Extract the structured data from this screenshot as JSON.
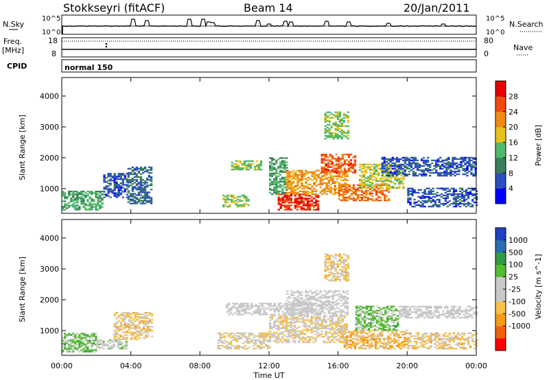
{
  "header": {
    "station": "Stokkseyri (fitACF)",
    "beam": "Beam 14",
    "date": "20/Jan/2011"
  },
  "top_strips": {
    "nsky": {
      "left_label": "N.Sky",
      "tick_top": "10^5",
      "tick_bottom": "10^0"
    },
    "nsearch": {
      "right_label": "N.Search",
      "tick_top": "10^5",
      "tick_bottom": "10^0"
    },
    "freq": {
      "left_label_1": "Freq.",
      "left_label_2": "[MHz]",
      "tick_top": "18",
      "tick_bottom": "8"
    },
    "nave": {
      "right_label": "Nave",
      "tick_top": "80",
      "tick_bottom": "0"
    },
    "cpid": {
      "left_label": "CPID",
      "program": "normal 150"
    }
  },
  "colors": {
    "power_scale": [
      "#0000ff",
      "#2c4fc0",
      "#3a7d5a",
      "#52b86a",
      "#e6c21c",
      "#f08a14",
      "#f04a10",
      "#e60000"
    ],
    "velocity_scale": [
      "#ff0000",
      "#f06010",
      "#f59a1a",
      "#f7c04a",
      "#c9c9c9",
      "#c9c9c9",
      "#55bb33",
      "#339944",
      "#2a6db0",
      "#2040c0"
    ]
  },
  "chart_data": [
    {
      "type": "heatmap",
      "title": "",
      "xlabel": "Time UT",
      "ylabel": "Slant Range [km]",
      "x_ticks": [
        "00:00",
        "04:00",
        "08:00",
        "12:00",
        "16:00",
        "20:00",
        "00:00"
      ],
      "y_ticks": [
        "1000",
        "2000",
        "3000",
        "4000"
      ],
      "ylim": [
        200,
        4600
      ],
      "colorbar": {
        "label": "Power [dB]",
        "ticks": [
          "4",
          "8",
          "12",
          "16",
          "20",
          "24",
          "28"
        ],
        "range": [
          0,
          30
        ]
      },
      "regions": [
        {
          "t0": 0.0,
          "t1": 2.3,
          "r0": 300,
          "r1": 900,
          "value": 12
        },
        {
          "t0": 2.4,
          "t1": 3.8,
          "r0": 700,
          "r1": 1500,
          "value": 6
        },
        {
          "t0": 3.8,
          "t1": 5.2,
          "r0": 500,
          "r1": 1700,
          "value": 8
        },
        {
          "t0": 9.3,
          "t1": 10.8,
          "r0": 400,
          "r1": 800,
          "value": 14
        },
        {
          "t0": 9.8,
          "t1": 11.5,
          "r0": 1600,
          "r1": 1900,
          "value": 14
        },
        {
          "t0": 12.0,
          "t1": 13.0,
          "r0": 800,
          "r1": 2000,
          "value": 12
        },
        {
          "t0": 12.5,
          "t1": 14.8,
          "r0": 300,
          "r1": 800,
          "value": 26
        },
        {
          "t0": 13.0,
          "t1": 16.5,
          "r0": 800,
          "r1": 1600,
          "value": 20
        },
        {
          "t0": 15.0,
          "t1": 17.0,
          "r0": 1500,
          "r1": 2100,
          "value": 24
        },
        {
          "t0": 15.2,
          "t1": 16.6,
          "r0": 2600,
          "r1": 3500,
          "value": 14
        },
        {
          "t0": 16.0,
          "t1": 19.0,
          "r0": 600,
          "r1": 1100,
          "value": 22
        },
        {
          "t0": 17.2,
          "t1": 19.8,
          "r0": 1000,
          "r1": 1800,
          "value": 16
        },
        {
          "t0": 18.5,
          "t1": 24.0,
          "r0": 1400,
          "r1": 2000,
          "value": 6
        },
        {
          "t0": 20.0,
          "t1": 24.0,
          "r0": 400,
          "r1": 1000,
          "value": 6
        }
      ]
    },
    {
      "type": "heatmap",
      "title": "",
      "xlabel": "Time UT",
      "ylabel": "Slant Range [km]",
      "x_ticks": [
        "00:00",
        "04:00",
        "08:00",
        "12:00",
        "16:00",
        "20:00",
        "00:00"
      ],
      "y_ticks": [
        "1000",
        "2000",
        "3000",
        "4000"
      ],
      "ylim": [
        200,
        4600
      ],
      "colorbar": {
        "label": "Velocity [m s^-1]",
        "ticks": [
          "1000",
          "500",
          "100",
          "25",
          "-25",
          "-100",
          "-500",
          "-1000"
        ],
        "range": [
          -1250,
          1250
        ]
      },
      "regions": [
        {
          "t0": 0.0,
          "t1": 2.0,
          "r0": 300,
          "r1": 900,
          "value": 300
        },
        {
          "t0": 2.0,
          "t1": 3.8,
          "r0": 400,
          "r1": 700,
          "value": 80
        },
        {
          "t0": 3.0,
          "t1": 5.2,
          "r0": 700,
          "r1": 1600,
          "value": -300
        },
        {
          "t0": 9.0,
          "t1": 12.0,
          "r0": 400,
          "r1": 900,
          "value": -200
        },
        {
          "t0": 9.5,
          "t1": 14.5,
          "r0": 1500,
          "r1": 1900,
          "value": 0
        },
        {
          "t0": 12.0,
          "t1": 16.5,
          "r0": 600,
          "r1": 1500,
          "value": -200
        },
        {
          "t0": 13.0,
          "t1": 16.5,
          "r0": 1500,
          "r1": 2300,
          "value": 0
        },
        {
          "t0": 15.2,
          "t1": 16.6,
          "r0": 2600,
          "r1": 3500,
          "value": -300
        },
        {
          "t0": 16.2,
          "t1": 20.0,
          "r0": 400,
          "r1": 1000,
          "value": -400
        },
        {
          "t0": 17.0,
          "t1": 19.5,
          "r0": 1000,
          "r1": 1800,
          "value": 300
        },
        {
          "t0": 19.5,
          "t1": 24.0,
          "r0": 1400,
          "r1": 1800,
          "value": 0
        },
        {
          "t0": 20.0,
          "t1": 24.0,
          "r0": 400,
          "r1": 900,
          "value": -300
        }
      ]
    }
  ]
}
